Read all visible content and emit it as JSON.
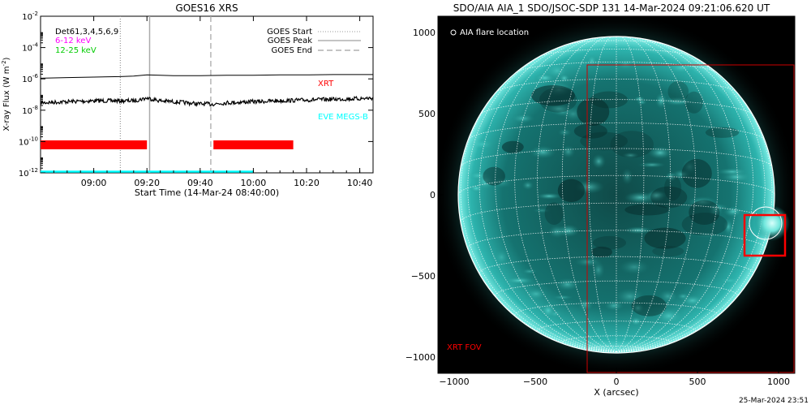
{
  "footer_timestamp": "25-Mar-2024 23:51",
  "chart_data": [
    {
      "type": "line",
      "title": "GOES16 XRS",
      "xlabel": "Start Time (14-Mar-24 08:40:00)",
      "ylabel": "X-ray Flux (W m^-2)",
      "ylabel_main": "X-ray Flux (W m",
      "ylabel_exp": "-2",
      "ylabel_close": ")",
      "yscale": "log",
      "xlim": [
        "08:40",
        "10:45"
      ],
      "ylim": [
        1e-12,
        0.01
      ],
      "x_ticks": [
        "09:00",
        "09:20",
        "09:40",
        "10:00",
        "10:20",
        "10:40"
      ],
      "y_ticks": [
        {
          "value": 1e-12,
          "base": "10",
          "exp": "-12"
        },
        {
          "value": 1e-10,
          "base": "10",
          "exp": "-10"
        },
        {
          "value": 1e-08,
          "base": "10",
          "exp": "-8"
        },
        {
          "value": 1e-06,
          "base": "10",
          "exp": "-6"
        },
        {
          "value": 0.0001,
          "base": "10",
          "exp": "-4"
        },
        {
          "value": 0.01,
          "base": "10",
          "exp": "-2"
        }
      ],
      "detector_label": "Det61,3,4,5,6,9",
      "energy_bands": [
        {
          "label": "6-12 keV",
          "color": "#ff00ff"
        },
        {
          "label": "12-25 keV",
          "color": "#00cc00"
        }
      ],
      "event_lines": [
        {
          "label": "GOES Start",
          "time": "09:10",
          "style": "dotted",
          "color": "#999999"
        },
        {
          "label": "GOES Peak",
          "time": "09:21",
          "style": "solid",
          "color": "#aaaaaa"
        },
        {
          "label": "GOES End",
          "time": "09:44",
          "style": "dashed",
          "color": "#aaaaaa"
        }
      ],
      "series": [
        {
          "name": "",
          "color": "#000000",
          "x": [
            "08:40",
            "08:50",
            "09:00",
            "09:10",
            "09:15",
            "09:20",
            "09:25",
            "09:30",
            "09:40",
            "09:50",
            "10:00",
            "10:10",
            "10:20",
            "10:30",
            "10:40",
            "10:45"
          ],
          "y": [
            1.1e-06,
            1.2e-06,
            1.3e-06,
            1.4e-06,
            1.5e-06,
            1.8e-06,
            1.7e-06,
            1.6e-06,
            1.6e-06,
            1.7e-06,
            1.7e-06,
            1.8e-06,
            1.8e-06,
            1.9e-06,
            1.9e-06,
            1.9e-06
          ]
        },
        {
          "name": "",
          "color": "#000000",
          "noisy": true,
          "x": [
            "08:40",
            "08:50",
            "09:00",
            "09:10",
            "09:15",
            "09:20",
            "09:25",
            "09:30",
            "09:40",
            "09:45",
            "09:50",
            "10:00",
            "10:10",
            "10:20",
            "10:30",
            "10:40",
            "10:45"
          ],
          "y": [
            3e-08,
            3.5e-08,
            4e-08,
            4e-08,
            4e-08,
            6e-08,
            4e-08,
            3.5e-08,
            2.5e-08,
            2.5e-08,
            3e-08,
            3.5e-08,
            4e-08,
            4.5e-08,
            5e-08,
            5.5e-08,
            6e-08
          ]
        },
        {
          "name": "",
          "color": "#00ffff",
          "x": [
            "08:40",
            "10:00"
          ],
          "y": [
            1.2e-12,
            1.2e-12
          ]
        }
      ],
      "coverage_bars": [
        {
          "label": "XRT",
          "color": "#ff0000",
          "segments": [
            [
              "08:40",
              "09:20"
            ],
            [
              "09:45",
              "10:15"
            ]
          ]
        }
      ],
      "annotations": [
        {
          "text": "XRT",
          "color": "#ff0000"
        },
        {
          "text": "EVE MEGS-B",
          "color": "#00ffff"
        }
      ]
    },
    {
      "type": "image",
      "title": "SDO/AIA AIA_1 SDO/JSOC-SDP 131 14-Mar-2024 09:21:06.620 UT",
      "xlabel": "X (arcsec)",
      "ylabel": "",
      "xlim": [
        -1100,
        1100
      ],
      "ylim": [
        -1100,
        1100
      ],
      "x_ticks": [
        "-1000",
        "-500",
        "0",
        "500",
        "1000"
      ],
      "y_ticks": [
        "1000",
        "500",
        "0",
        "-500",
        "-1000"
      ],
      "legend_label": "AIA flare location",
      "fov_label": "XRT FOV",
      "solar_radius_arcsec": 975,
      "xrt_fov": {
        "x": [
          -180,
          1100
        ],
        "y": [
          -1100,
          800
        ],
        "color": "#ff0000"
      },
      "flare_box": {
        "x": [
          790,
          1040
        ],
        "y": [
          -375,
          -125
        ],
        "color": "#ff0000"
      },
      "flare_location": {
        "x": 920,
        "y": -175
      }
    }
  ]
}
